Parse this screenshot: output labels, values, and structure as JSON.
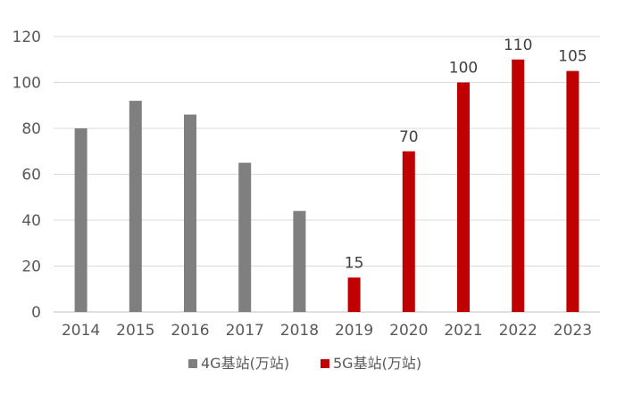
{
  "chart_data": {
    "type": "bar",
    "title": "",
    "xlabel": "",
    "ylabel": "",
    "categories": [
      "2014",
      "2015",
      "2016",
      "2017",
      "2018",
      "2019",
      "2020",
      "2021",
      "2022",
      "2023"
    ],
    "series": [
      {
        "name": "4G基站(万站)",
        "color": "#7f7f7f",
        "values": [
          80,
          92,
          86,
          65,
          44,
          null,
          null,
          null,
          null,
          null
        ],
        "data_labels": false
      },
      {
        "name": "5G基站(万站)",
        "color": "#c00000",
        "values": [
          null,
          null,
          null,
          null,
          null,
          15,
          70,
          100,
          110,
          105
        ],
        "data_labels": true
      }
    ],
    "ylim": [
      0,
      120
    ],
    "yticks": [
      0,
      20,
      40,
      60,
      80,
      100,
      120
    ],
    "grid": true,
    "legend_position": "bottom"
  }
}
